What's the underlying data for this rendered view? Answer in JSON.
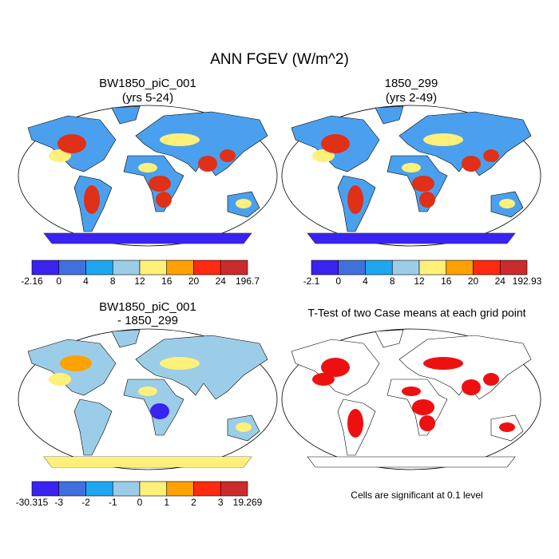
{
  "title": "ANN FGEV (W/m^2)",
  "colorbar_colors": [
    "#3a22f0",
    "#4170dc",
    "#1ea6f0",
    "#9ccde8",
    "#fff07a",
    "#ffa100",
    "#ff2a10",
    "#cc2b2b"
  ],
  "panels": [
    {
      "title": "BW1850_piC_001",
      "subtitle": "(yrs 5-24)",
      "colorbar": [
        -2.16,
        0,
        4,
        8,
        12,
        16,
        20,
        24,
        196.7
      ]
    },
    {
      "title": "1850_299",
      "subtitle": "(yrs 2-49)",
      "colorbar": [
        -2.1,
        0,
        4,
        8,
        12,
        16,
        20,
        24,
        192.93
      ]
    },
    {
      "title": "BW1850_piC_001",
      "subtitle": "- 1850_299",
      "colorbar": [
        -30.315,
        -3,
        -2,
        -1,
        0,
        1,
        2,
        3,
        19.269
      ]
    },
    {
      "title": "T-Test of two Case means at each grid point",
      "note": "Cells are significant at 0.1 level"
    }
  ]
}
